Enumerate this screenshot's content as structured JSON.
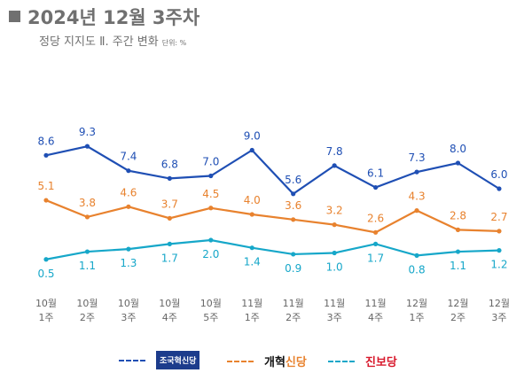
{
  "title": "2024년 12월 3주차",
  "subtitle": "정당 지지도 Ⅱ. 주간 변화",
  "unit": "단위: %",
  "chart_data": {
    "type": "line",
    "categories": [
      [
        "10월",
        "1주"
      ],
      [
        "10월",
        "2주"
      ],
      [
        "10월",
        "3주"
      ],
      [
        "10월",
        "4주"
      ],
      [
        "10월",
        "5주"
      ],
      [
        "11월",
        "1주"
      ],
      [
        "11월",
        "2주"
      ],
      [
        "11월",
        "3주"
      ],
      [
        "11월",
        "4주"
      ],
      [
        "12월",
        "1주"
      ],
      [
        "12월",
        "2주"
      ],
      [
        "12월",
        "3주"
      ]
    ],
    "ylim": [
      0,
      10
    ],
    "grid": false,
    "legend_placement": "bottom",
    "series": [
      {
        "name": "조국혁신당",
        "color": "#1f4fb4",
        "label_pos": "above",
        "values": [
          8.6,
          9.3,
          7.4,
          6.8,
          7.0,
          9.0,
          5.6,
          7.8,
          6.1,
          7.3,
          8.0,
          6.0
        ]
      },
      {
        "name": "개혁신당",
        "color": "#e8822e",
        "label_pos": "above",
        "values": [
          5.1,
          3.8,
          4.6,
          3.7,
          4.5,
          4.0,
          3.6,
          3.2,
          2.6,
          4.3,
          2.8,
          2.7
        ]
      },
      {
        "name": "진보당",
        "color": "#16a7c9",
        "label_pos": "below",
        "values": [
          0.5,
          1.1,
          1.3,
          1.7,
          2.0,
          1.4,
          0.9,
          1.0,
          1.7,
          0.8,
          1.1,
          1.2
        ]
      }
    ]
  },
  "legend": {
    "s1": "조국혁신당",
    "s2a": "개혁",
    "s2b": "신당",
    "s3": "진보당"
  }
}
